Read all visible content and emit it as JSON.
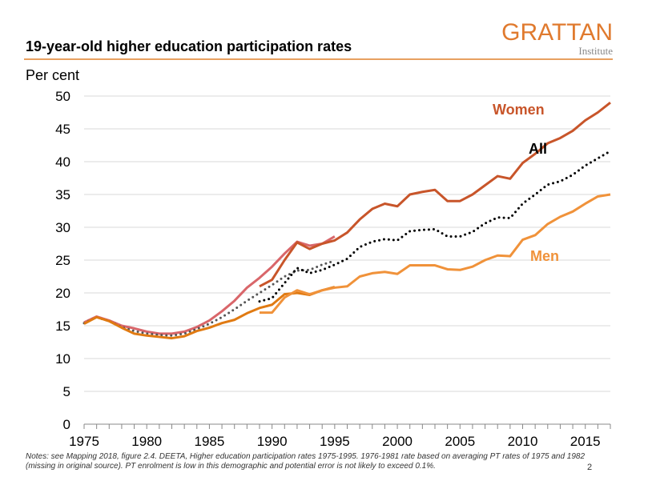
{
  "header": {
    "title": "19-year-old higher education participation rates",
    "logo": "GRATTAN",
    "logo_sub": "Institute"
  },
  "notes": "Notes: see Mapping 2018, figure 2.4. DEETA, Higher education participation rates 1975-1995.  1976-1981  rate based on averaging  PT rates of 1975 and 1982 (missing in original source).  PT enrolment  is low  in this demographic  and potential error  is not likely to exceed 0.1%.",
  "page_number": "2",
  "chart_data": {
    "type": "line",
    "ylabel": "Per cent",
    "xlim": [
      1975,
      2017
    ],
    "ylim": [
      0,
      50
    ],
    "yticks": [
      0,
      5,
      10,
      15,
      20,
      25,
      30,
      35,
      40,
      45,
      50
    ],
    "xticks": [
      1975,
      1980,
      1985,
      1990,
      1995,
      2000,
      2005,
      2010,
      2015
    ],
    "grid": "horizontal",
    "colors": {
      "women": "#c8552a",
      "women_early": "#d9666a",
      "all": "#000000",
      "all_early": "#555555",
      "men": "#f0923a",
      "men_early": "#e07a12"
    },
    "labels": {
      "women": "Women",
      "all": "All",
      "men": "Men"
    },
    "series": [
      {
        "key": "women_early",
        "style": "solid",
        "x_start": 1975,
        "values": [
          15.5,
          16.4,
          15.8,
          15,
          14.6,
          14.1,
          13.8,
          13.8,
          14.1,
          14.8,
          15.8,
          17.2,
          18.8,
          20.8,
          22.3,
          24,
          26,
          27.8,
          27.2,
          27.5,
          28.6
        ]
      },
      {
        "key": "all_early",
        "style": "dotted",
        "x_start": 1975,
        "values": [
          15.4,
          16.3,
          15.7,
          14.8,
          14.2,
          13.8,
          13.6,
          13.5,
          13.8,
          14.5,
          15.3,
          16.3,
          17.5,
          18.8,
          20,
          21.2,
          22.5,
          23.4,
          23.5,
          24.3,
          24.9
        ]
      },
      {
        "key": "men_early",
        "style": "solid",
        "x_start": 1975,
        "values": [
          15.3,
          16.3,
          15.7,
          14.7,
          13.8,
          13.5,
          13.3,
          13.1,
          13.4,
          14.2,
          14.7,
          15.4,
          15.9,
          16.9,
          17.7,
          18.2,
          19.8,
          20,
          19.7,
          20.4,
          20.9
        ]
      },
      {
        "key": "women",
        "name": "Women",
        "style": "solid",
        "x_start": 1989,
        "values": [
          21,
          22,
          25,
          27.7,
          26.7,
          27.5,
          28,
          29.2,
          31.2,
          32.8,
          33.6,
          33.2,
          35,
          35.4,
          35.7,
          34,
          34,
          35,
          36.4,
          37.8,
          37.4,
          39.8,
          41.2,
          42.8,
          43.6,
          44.7,
          46.3,
          47.5,
          49
        ]
      },
      {
        "key": "all",
        "name": "All",
        "style": "dotted",
        "x_start": 1989,
        "values": [
          18.7,
          19.2,
          21.5,
          23.8,
          23,
          23.5,
          24.3,
          25.2,
          27,
          27.8,
          28.2,
          28,
          29.4,
          29.6,
          29.7,
          28.6,
          28.6,
          29.3,
          30.6,
          31.5,
          31.4,
          33.6,
          35,
          36.5,
          37,
          38,
          39.4,
          40.5,
          41.6
        ]
      },
      {
        "key": "men",
        "name": "Men",
        "style": "solid",
        "x_start": 1989,
        "values": [
          17,
          17,
          19.3,
          20.4,
          19.8,
          20.4,
          20.8,
          21,
          22.5,
          23,
          23.2,
          22.9,
          24.2,
          24.2,
          24.2,
          23.6,
          23.5,
          24,
          25,
          25.7,
          25.6,
          28.1,
          28.8,
          30.5,
          31.6,
          32.4,
          33.6,
          34.7,
          35
        ]
      }
    ]
  }
}
